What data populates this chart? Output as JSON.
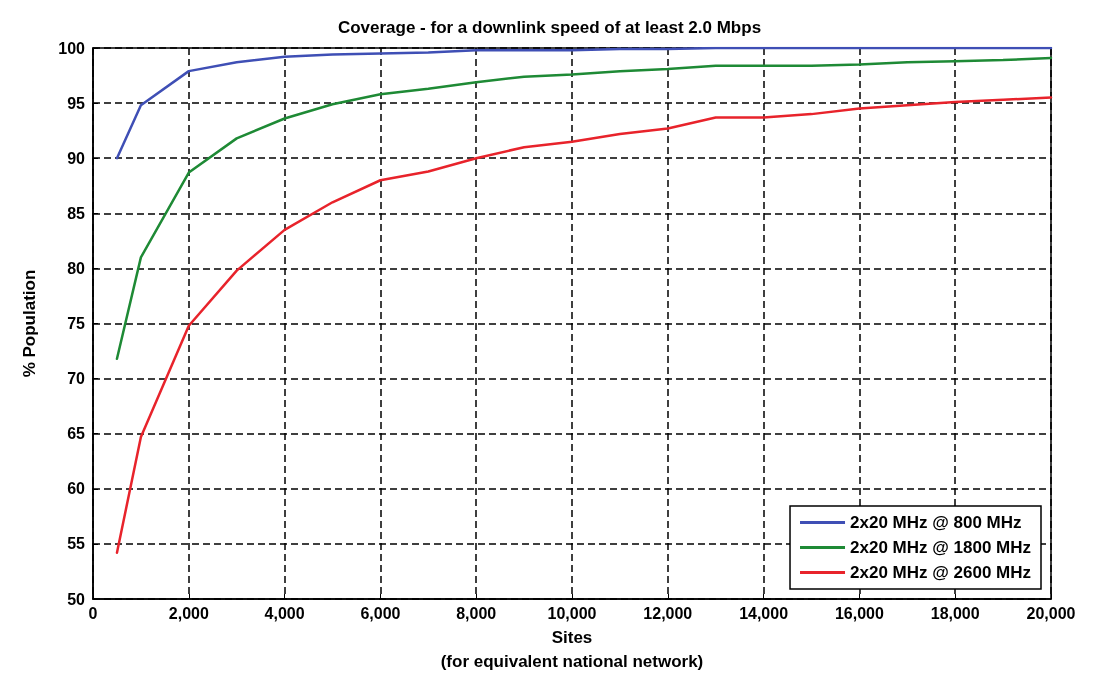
{
  "chart_data": {
    "type": "line",
    "title": "Coverage - for a downlink speed of at least 2.0 Mbps",
    "xlabel": "Sites\n(for equivalent national network)",
    "ylabel": "% Population",
    "x": [
      500,
      1000,
      2000,
      3000,
      4000,
      5000,
      6000,
      7000,
      8000,
      9000,
      10000,
      11000,
      12000,
      13000,
      14000,
      15000,
      16000,
      17000,
      18000,
      19000,
      20000
    ],
    "series": [
      {
        "name": "2x20 MHz @ 800 MHz",
        "color": "#3f4fb5",
        "values": [
          90,
          94.8,
          97.9,
          98.7,
          99.2,
          99.4,
          99.5,
          99.6,
          99.8,
          99.8,
          99.8,
          99.9,
          99.9,
          100,
          100,
          100,
          100,
          100,
          100,
          100,
          100
        ]
      },
      {
        "name": "2x20 MHz @ 1800 MHz",
        "color": "#1e8a35",
        "values": [
          71.8,
          81,
          88.7,
          91.8,
          93.6,
          94.9,
          95.8,
          96.3,
          96.9,
          97.4,
          97.6,
          97.9,
          98.1,
          98.4,
          98.4,
          98.4,
          98.5,
          98.7,
          98.8,
          98.9,
          99.1
        ]
      },
      {
        "name": "2x20 MHz @ 2600 MHz",
        "color": "#e8232b",
        "values": [
          54.2,
          64.7,
          74.8,
          79.8,
          83.5,
          86,
          88,
          88.8,
          90,
          91,
          91.5,
          92.2,
          92.7,
          93.7,
          93.7,
          94,
          94.5,
          94.8,
          95.1,
          95.3,
          95.5
        ]
      }
    ],
    "xlim": [
      0,
      20000
    ],
    "xticks": [
      {
        "value": 0,
        "label": "0"
      },
      {
        "value": 2000,
        "label": "2,000"
      },
      {
        "value": 4000,
        "label": "4,000"
      },
      {
        "value": 6000,
        "label": "6,000"
      },
      {
        "value": 8000,
        "label": "8,000"
      },
      {
        "value": 10000,
        "label": "10,000"
      },
      {
        "value": 12000,
        "label": "12,000"
      },
      {
        "value": 14000,
        "label": "14,000"
      },
      {
        "value": 16000,
        "label": "16,000"
      },
      {
        "value": 18000,
        "label": "18,000"
      },
      {
        "value": 20000,
        "label": "20,000"
      }
    ],
    "ylim": [
      50,
      100
    ],
    "yticks": [
      50,
      55,
      60,
      65,
      70,
      75,
      80,
      85,
      90,
      95,
      100
    ],
    "grid": true,
    "legend": "bottom right",
    "marker": "none",
    "line_style": "solid"
  }
}
